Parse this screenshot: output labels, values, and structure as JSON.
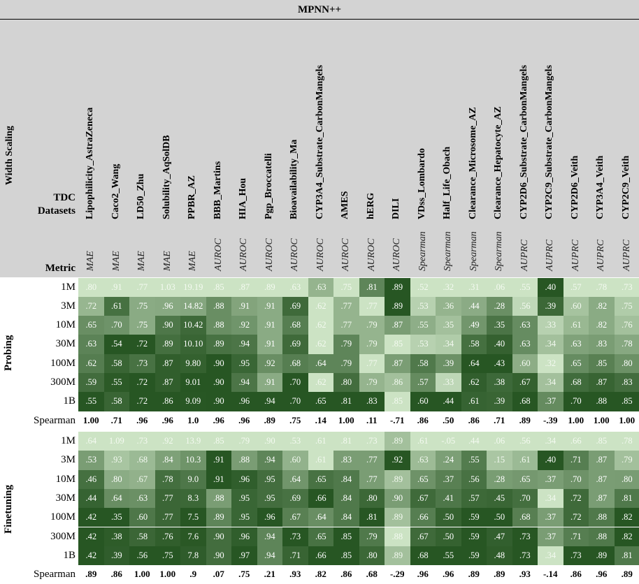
{
  "chart_data": {
    "type": "heatmap",
    "title": "MPNN++",
    "corner_labels": {
      "width_scaling": "Width Scaling",
      "tdc_datasets": "TDC Datasets",
      "metric": "Metric"
    },
    "datasets": [
      "Lipophilicity_AstraZeneca",
      "Caco2_Wang",
      "LD50_Zhu",
      "Solubility_AqSolDB",
      "PPBR_AZ",
      "BBB_Martins",
      "HIA_Hou",
      "Pgp_Broccatelli",
      "Bioavailability_Ma",
      "CYP3A4_Substrate_CarbonMangels",
      "AMES",
      "hERG",
      "DILI",
      "VDss_Lombardo",
      "Half_Life_Obach",
      "Clearance_Microsome_AZ",
      "Clearance_Hepatocyte_AZ",
      "CYP2D6_Substrate_CarbonMangels",
      "CYP2C9_Substrate_CarbonMangels",
      "CYP2D6_Veith",
      "CYP3A4_Veith",
      "CYP2C9_Veith"
    ],
    "metrics": [
      "MAE",
      "MAE",
      "MAE",
      "MAE",
      "MAE",
      "AUROC",
      "AUROC",
      "AUROC",
      "AUROC",
      "AUROC",
      "AUROC",
      "AUROC",
      "AUROC",
      "Spearman",
      "Spearman",
      "Spearman",
      "Spearman",
      "AUPRC",
      "AUPRC",
      "AUPRC",
      "AUPRC",
      "AUPRC"
    ],
    "row_labels": [
      "1M",
      "3M",
      "10M",
      "30M",
      "100M",
      "300M",
      "1B"
    ],
    "spearman_label": "Spearman",
    "sections": [
      {
        "name": "Probing",
        "rows": [
          [
            ".80",
            ".91",
            ".77",
            "1.03",
            "19.19",
            ".85",
            ".87",
            ".89",
            ".63",
            ".63",
            ".75",
            ".81",
            ".89",
            ".52",
            ".32",
            ".31",
            ".06",
            ".55",
            ".40",
            ".57",
            ".78",
            ".73"
          ],
          [
            ".72",
            ".61",
            ".75",
            ".96",
            "14.82",
            ".88",
            ".91",
            ".91",
            ".69",
            ".62",
            ".77",
            ".77",
            ".89",
            ".53",
            ".36",
            ".44",
            ".28",
            ".56",
            ".39",
            ".60",
            ".82",
            ".75"
          ],
          [
            ".65",
            ".70",
            ".75",
            ".90",
            "10.42",
            ".88",
            ".92",
            ".91",
            ".68",
            ".62",
            ".77",
            ".79",
            ".87",
            ".55",
            ".35",
            ".49",
            ".35",
            ".63",
            ".33",
            ".61",
            ".82",
            ".76"
          ],
          [
            ".63",
            ".54",
            ".72",
            ".89",
            "10.10",
            ".89",
            ".94",
            ".91",
            ".69",
            ".62",
            ".79",
            ".79",
            ".85",
            ".53",
            ".34",
            ".58",
            ".40",
            ".63",
            ".34",
            ".63",
            ".83",
            ".78"
          ],
          [
            ".62",
            ".58",
            ".73",
            ".87",
            "9.80",
            ".90",
            ".95",
            ".92",
            ".68",
            ".64",
            ".79",
            ".77",
            ".87",
            ".58",
            ".39",
            ".64",
            ".43",
            ".60",
            ".32",
            ".65",
            ".85",
            ".80"
          ],
          [
            ".59",
            ".55",
            ".72",
            ".87",
            "9.01",
            ".90",
            ".94",
            ".91",
            ".70",
            ".62",
            ".80",
            ".79",
            ".86",
            ".57",
            ".33",
            ".62",
            ".38",
            ".67",
            ".34",
            ".68",
            ".87",
            ".83"
          ],
          [
            ".55",
            ".58",
            ".72",
            ".86",
            "9.09",
            ".90",
            ".96",
            ".94",
            ".70",
            ".65",
            ".81",
            ".83",
            ".85",
            ".60",
            ".44",
            ".61",
            ".39",
            ".68",
            ".37",
            ".70",
            ".88",
            ".85"
          ]
        ],
        "spearman": [
          "1.00",
          ".71",
          ".96",
          ".96",
          "1.0",
          ".96",
          ".96",
          ".89",
          ".75",
          ".14",
          "1.00",
          ".11",
          "-.71",
          ".86",
          ".50",
          ".86",
          ".71",
          ".89",
          "-.39",
          "1.00",
          "1.00",
          "1.00"
        ]
      },
      {
        "name": "Finetuning",
        "rows": [
          [
            ".64",
            "1.09",
            ".73",
            ".92",
            "13.9",
            ".85",
            ".79",
            ".90",
            ".53",
            ".61",
            ".81",
            ".73",
            ".89",
            ".61",
            "-.05",
            ".44",
            ".06",
            ".56",
            ".34",
            ".66",
            ".85",
            ".78"
          ],
          [
            ".53",
            ".93",
            ".68",
            ".84",
            "10.3",
            ".91",
            ".88",
            ".94",
            ".60",
            ".61",
            ".83",
            ".77",
            ".92",
            ".63",
            ".24",
            ".55",
            ".15",
            ".61",
            ".40",
            ".71",
            ".87",
            ".79"
          ],
          [
            ".46",
            ".80",
            ".67",
            ".78",
            "9.0",
            ".91",
            ".96",
            ".95",
            ".64",
            ".65",
            ".84",
            ".77",
            ".89",
            ".65",
            ".37",
            ".56",
            ".28",
            ".65",
            ".37",
            ".70",
            ".87",
            ".80"
          ],
          [
            ".44",
            ".64",
            ".63",
            ".77",
            "8.3",
            ".88",
            ".95",
            ".95",
            ".69",
            ".66",
            ".84",
            ".80",
            ".90",
            ".67",
            ".41",
            ".57",
            ".45",
            ".70",
            ".34",
            ".72",
            ".87",
            ".81"
          ],
          [
            ".42",
            ".35",
            ".60",
            ".77",
            "7.5",
            ".89",
            ".95",
            ".96",
            ".67",
            ".64",
            ".84",
            ".81",
            ".89",
            ".66",
            ".50",
            ".59",
            ".50",
            ".68",
            ".37",
            ".72",
            ".88",
            ".82"
          ],
          [
            ".42",
            ".38",
            ".58",
            ".76",
            "7.6",
            ".90",
            ".96",
            ".94",
            ".73",
            ".65",
            ".85",
            ".79",
            ".88",
            ".67",
            ".50",
            ".59",
            ".47",
            ".73",
            ".37",
            ".71",
            ".88",
            ".82"
          ],
          [
            ".42",
            ".39",
            ".56",
            ".75",
            "7.8",
            ".90",
            ".97",
            ".94",
            ".71",
            ".66",
            ".85",
            ".80",
            ".89",
            ".68",
            ".55",
            ".59",
            ".48",
            ".73",
            ".34",
            ".73",
            ".89",
            ".81"
          ]
        ],
        "spearman": [
          ".89",
          ".86",
          "1.00",
          "1.00",
          ".9",
          ".07",
          ".75",
          ".21",
          ".93",
          ".82",
          ".86",
          ".68",
          "-.29",
          ".96",
          ".96",
          ".89",
          ".89",
          ".93",
          "-.14",
          ".86",
          ".96",
          ".89"
        ]
      }
    ]
  }
}
